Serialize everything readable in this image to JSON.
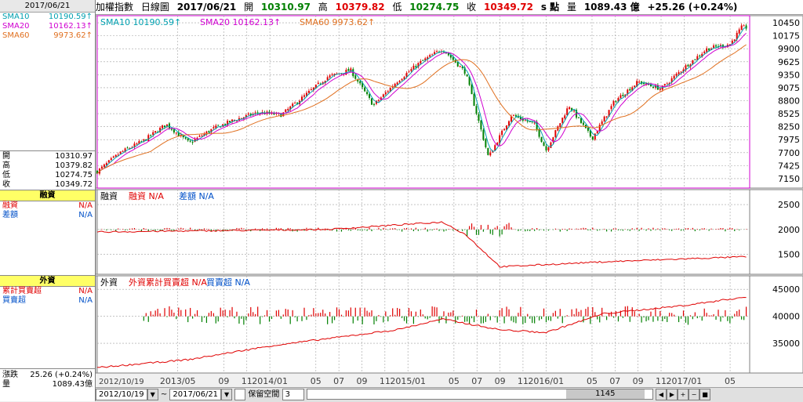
{
  "left": {
    "date": "2017/06/21",
    "sma": [
      {
        "label": "SMA10",
        "value": "10190.59",
        "arrow": "↑",
        "color": "#00a0b0"
      },
      {
        "label": "SMA20",
        "value": "10162.13",
        "arrow": "↑",
        "color": "#d000d0"
      },
      {
        "label": "SMA60",
        "value": "9973.62",
        "arrow": "↑",
        "color": "#e07020"
      }
    ],
    "ohlc": [
      {
        "label": "開",
        "value": "10310.97"
      },
      {
        "label": "高",
        "value": "10379.82"
      },
      {
        "label": "低",
        "value": "10274.75"
      },
      {
        "label": "收",
        "value": "10349.72"
      }
    ],
    "financing": {
      "title": "融資",
      "rows": [
        {
          "label": "融資",
          "value": "N/A",
          "color": "#e00000"
        },
        {
          "label": "差額",
          "value": "N/A",
          "color": "#0050c8"
        }
      ]
    },
    "foreign": {
      "title": "外資",
      "rows": [
        {
          "label": "累計買賣超",
          "value": "N/A",
          "color": "#e00000"
        },
        {
          "label": "買賣超",
          "value": "N/A",
          "color": "#0050c8"
        }
      ]
    },
    "change": [
      {
        "label": "漲跌",
        "value": "25.26 (+0.24%)"
      },
      {
        "label": "量",
        "value": "1089.43億"
      }
    ]
  },
  "topbar": {
    "name": "加權指數",
    "period": "日線圖",
    "date": "2017/06/21",
    "open_label": "開",
    "open": "10310.97",
    "high_label": "高",
    "high": "10379.82",
    "low_label": "低",
    "low": "10274.75",
    "close_label": "收",
    "close": "10349.72",
    "unit": "s 點",
    "vol_label": "量",
    "vol": "1089.43 億",
    "change": "+25.26 (+0.24%)"
  },
  "panels": {
    "price_legend": [
      {
        "text": "SMA10 10190.59↑",
        "color": "#00a0b0"
      },
      {
        "text": "SMA20 10162.13↑",
        "color": "#d000d0"
      },
      {
        "text": "SMA60 9973.62↑",
        "color": "#e07020"
      }
    ],
    "fin_legend": [
      {
        "text": "融資",
        "color": "#000000"
      },
      {
        "text": "融資 N/A",
        "color": "#e00000"
      },
      {
        "text": "差額 N/A",
        "color": "#0050c8"
      }
    ],
    "for_legend": [
      {
        "text": "外資",
        "color": "#000000"
      },
      {
        "text": "外資累計買賣超 N/A",
        "color": "#e00000"
      },
      {
        "text": "買賣超 N/A",
        "color": "#0050c8"
      }
    ]
  },
  "chart_data": {
    "type": "line",
    "title": "加權指數 日線圖",
    "price_yticks": [
      10450,
      10175,
      9900,
      9625,
      9350,
      9075,
      8800,
      8525,
      8250,
      7975,
      7700,
      7425,
      7150
    ],
    "price_ylim": [
      6950,
      10600
    ],
    "fin_yticks": [
      2500,
      2000,
      1500
    ],
    "fin_ylim": [
      1100,
      2800
    ],
    "for_yticks": [
      45000,
      40000,
      35000
    ],
    "for_ylim": [
      29500,
      47500
    ],
    "x_ticks": [
      "2012/10/19",
      "2013/05",
      "09",
      "11",
      "2014/01",
      "05",
      "07",
      "09",
      "11",
      "2015/01",
      "05",
      "07",
      "09",
      "11",
      "2016/01",
      "05",
      "07",
      "09",
      "11",
      "2017/01",
      "05"
    ],
    "price_series": [
      {
        "x": "2012-10",
        "v": 7300
      },
      {
        "x": "2012-12",
        "v": 7700
      },
      {
        "x": "2013-02",
        "v": 7950
      },
      {
        "x": "2013-04",
        "v": 8300
      },
      {
        "x": "2013-06",
        "v": 7900
      },
      {
        "x": "2013-08",
        "v": 8200
      },
      {
        "x": "2013-10",
        "v": 8400
      },
      {
        "x": "2013-12",
        "v": 8550
      },
      {
        "x": "2014-02",
        "v": 8500
      },
      {
        "x": "2014-04",
        "v": 8900
      },
      {
        "x": "2014-06",
        "v": 9300
      },
      {
        "x": "2014-08",
        "v": 9450
      },
      {
        "x": "2014-10",
        "v": 8700
      },
      {
        "x": "2014-12",
        "v": 9200
      },
      {
        "x": "2015-02",
        "v": 9600
      },
      {
        "x": "2015-04",
        "v": 9900
      },
      {
        "x": "2015-06",
        "v": 9400
      },
      {
        "x": "2015-08",
        "v": 7600
      },
      {
        "x": "2015-10",
        "v": 8500
      },
      {
        "x": "2015-12",
        "v": 8300
      },
      {
        "x": "2016-01",
        "v": 7750
      },
      {
        "x": "2016-03",
        "v": 8700
      },
      {
        "x": "2016-05",
        "v": 8000
      },
      {
        "x": "2016-07",
        "v": 8800
      },
      {
        "x": "2016-09",
        "v": 9200
      },
      {
        "x": "2016-11",
        "v": 9050
      },
      {
        "x": "2017-01",
        "v": 9500
      },
      {
        "x": "2017-03",
        "v": 9900
      },
      {
        "x": "2017-05",
        "v": 10000
      },
      {
        "x": "2017-06",
        "v": 10350
      }
    ],
    "fin_series": [
      {
        "x": "2012-10",
        "v": 1950
      },
      {
        "x": "2014-06",
        "v": 2000
      },
      {
        "x": "2015-04",
        "v": 2150
      },
      {
        "x": "2015-06",
        "v": 1900
      },
      {
        "x": "2015-09",
        "v": 1250
      },
      {
        "x": "2016-06",
        "v": 1350
      },
      {
        "x": "2017-06",
        "v": 1450
      }
    ],
    "for_series": [
      {
        "x": "2012-10",
        "v": 30500
      },
      {
        "x": "2013-06",
        "v": 32000
      },
      {
        "x": "2014-01",
        "v": 34500
      },
      {
        "x": "2014-12",
        "v": 37500
      },
      {
        "x": "2015-04",
        "v": 39500
      },
      {
        "x": "2015-09",
        "v": 37500
      },
      {
        "x": "2016-01",
        "v": 37000
      },
      {
        "x": "2016-06",
        "v": 40500
      },
      {
        "x": "2017-01",
        "v": 42000
      },
      {
        "x": "2017-06",
        "v": 43500
      }
    ],
    "grid": true,
    "legend": "top-left"
  },
  "status": {
    "from": "2012/10/19",
    "to": "2017/06/21",
    "keep_label": "保留空間",
    "keep_value": "3",
    "count": "1145"
  },
  "colors": {
    "up": "#e00000",
    "down": "#008000",
    "frame": "#d000d0",
    "grid": "#a0a0a0"
  }
}
